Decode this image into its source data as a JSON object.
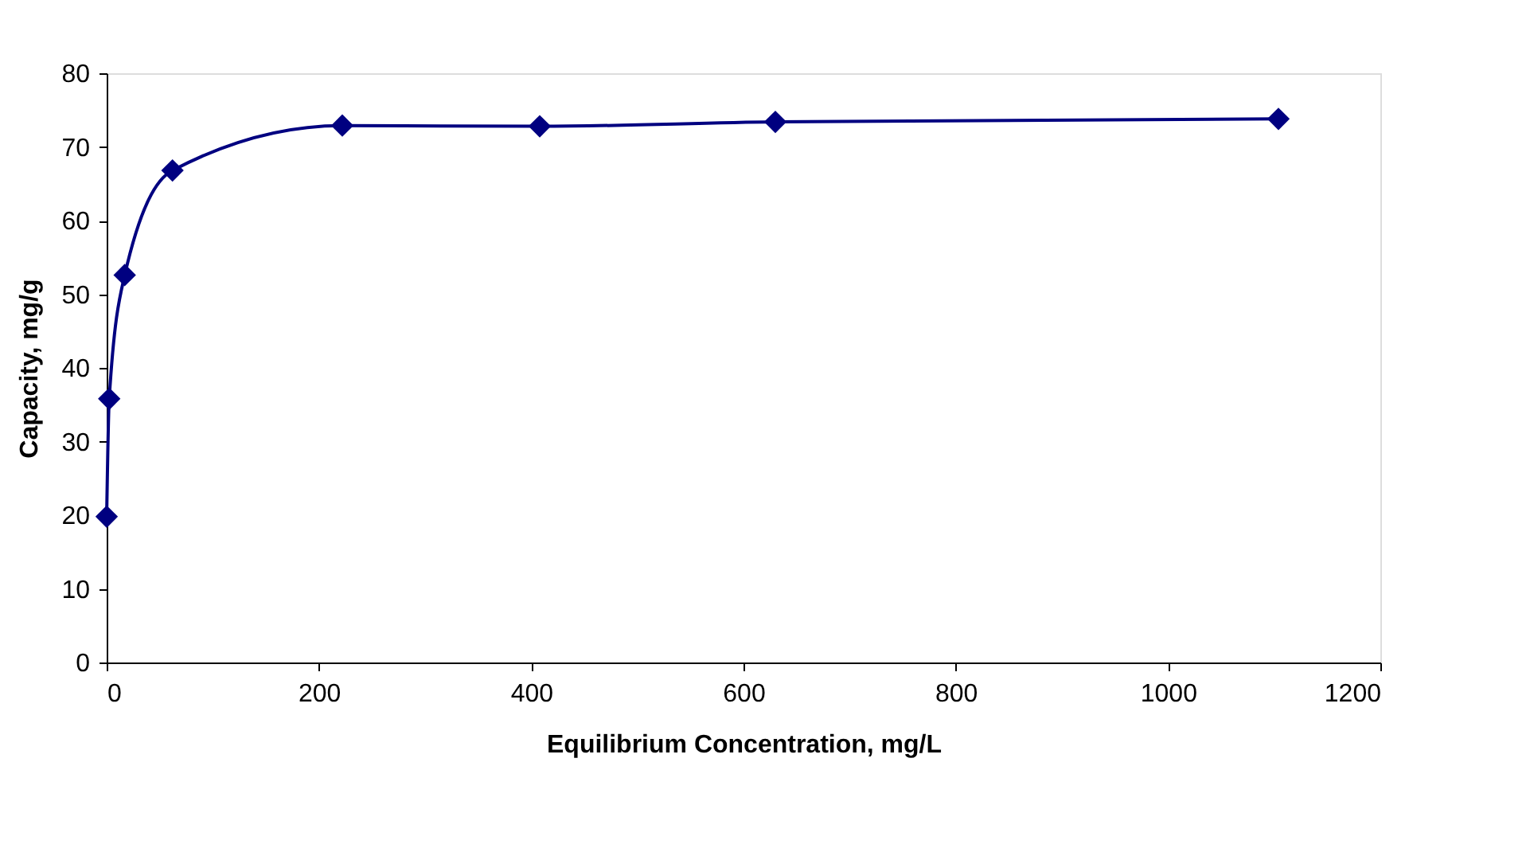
{
  "chart_data": {
    "type": "line",
    "xlabel": "Equilibrium Concentration, mg/L",
    "ylabel": "Capacity, mg/g",
    "x": [
      0,
      2.4,
      17,
      62,
      222,
      408,
      630,
      1104
    ],
    "series": [
      {
        "color": "#000080",
        "values": [
          19.8,
          35.8,
          52.6,
          66.8,
          72.9,
          72.8,
          73.4,
          73.8
        ]
      }
    ],
    "xlim": [
      0,
      1200
    ],
    "xticks": [
      0,
      200,
      400,
      600,
      800,
      1000,
      1200
    ],
    "ylim": [
      0,
      80
    ],
    "yticks": [
      0,
      10,
      20,
      30,
      40,
      50,
      60,
      70,
      80
    ],
    "grid": false,
    "legend": false,
    "marker": "diamond",
    "line_style": "solid"
  }
}
